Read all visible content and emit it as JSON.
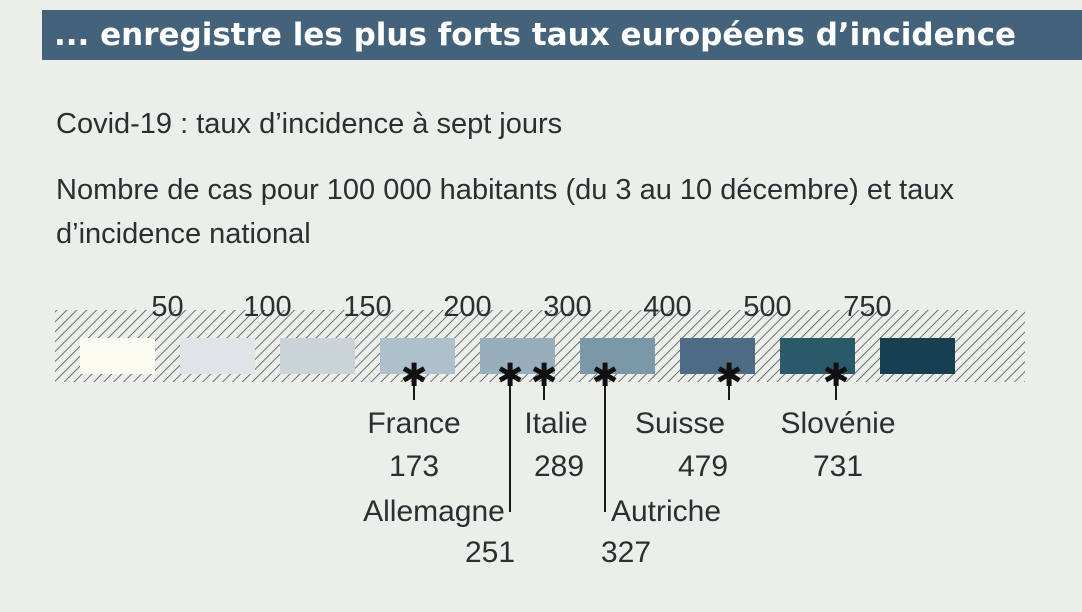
{
  "header": {
    "banner_title": "... enregistre les plus forts taux européens d’incidence"
  },
  "chart_meta": {
    "subtitle": "Covid-19 : taux d’incidence à sept jours",
    "description": "Nombre de cas pour 100 000 habitants (du 3 au 10 décembre) et taux d’incidence national"
  },
  "colors": {
    "banner": "#44637a",
    "background": "#eceee9",
    "scale": [
      "#fbfbf2",
      "#dfe4e6",
      "#c9d3d8",
      "#aec0cb",
      "#97afbd",
      "#7b98a8",
      "#4d6b82",
      "#2a5a6a",
      "#173f52"
    ]
  },
  "chart_data": {
    "type": "choropleth-legend",
    "title": "",
    "scale_thresholds": [
      "50",
      "100",
      "150",
      "200",
      "300",
      "400",
      "500",
      "750"
    ],
    "threshold_values": [
      50,
      100,
      150,
      200,
      300,
      400,
      500,
      750
    ],
    "countries": [
      {
        "name": "France",
        "value": 173,
        "value_label": "173"
      },
      {
        "name": "Allemagne",
        "value": 251,
        "value_label": "251"
      },
      {
        "name": "Italie",
        "value": 289,
        "value_label": "289"
      },
      {
        "name": "Autriche",
        "value": 327,
        "value_label": "327"
      },
      {
        "name": "Suisse",
        "value": 479,
        "value_label": "479"
      },
      {
        "name": "Slovénie",
        "value": 731,
        "value_label": "731"
      }
    ]
  }
}
